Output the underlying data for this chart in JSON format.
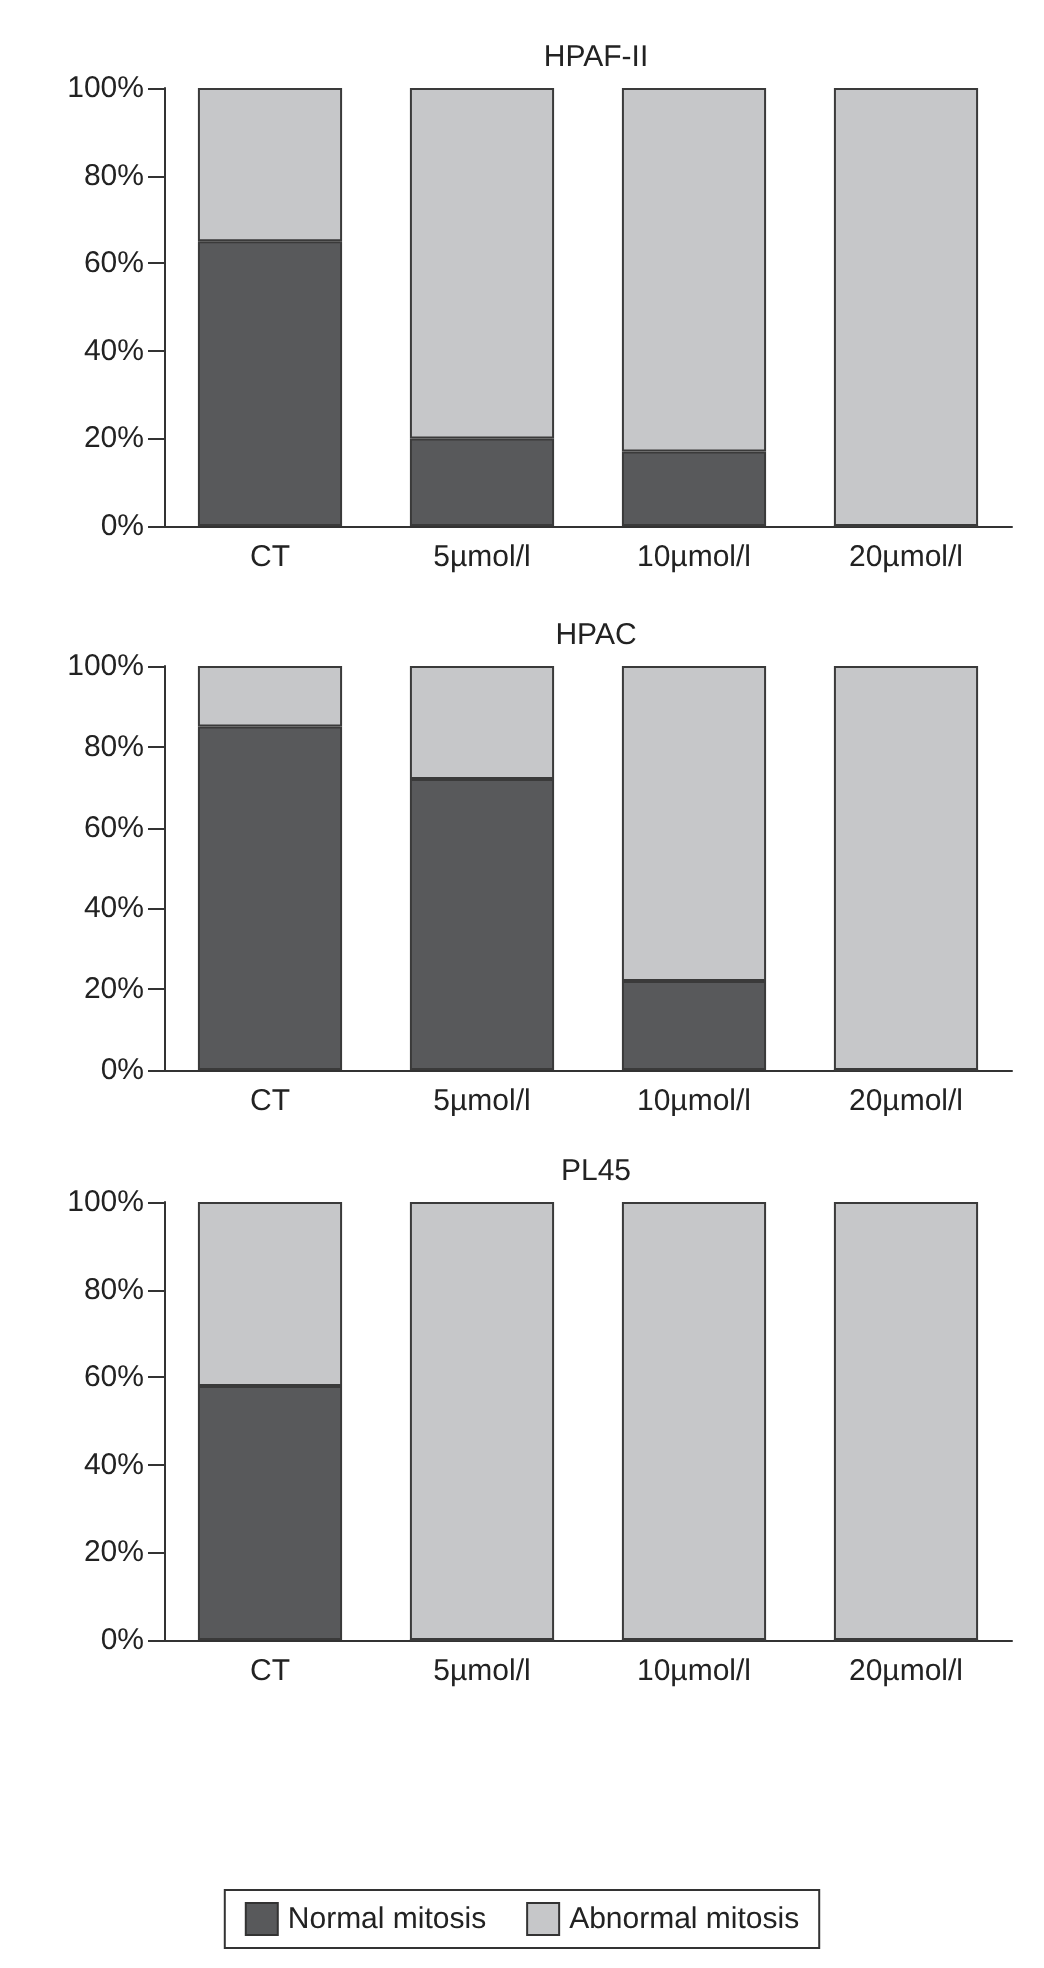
{
  "chart_data": [
    {
      "type": "bar",
      "title": "HPAF-II",
      "stacked": true,
      "categories": [
        "CT",
        "5µmol/l",
        "10µmol/l",
        "20µmol/l"
      ],
      "series": [
        {
          "color": "#58595b",
          "values": [
            65,
            20,
            17,
            0
          ]
        },
        {
          "color": "#c6c7c9",
          "values": [
            35,
            80,
            83,
            100
          ]
        }
      ],
      "ylim": [
        0,
        100
      ],
      "yticks": [
        {
          "value": 0,
          "label": "0%"
        },
        {
          "value": 20,
          "label": "20%"
        },
        {
          "value": 40,
          "label": "40%"
        },
        {
          "value": 60,
          "label": "60%"
        },
        {
          "value": 80,
          "label": "80%"
        },
        {
          "value": 100,
          "label": "100%"
        }
      ],
      "grid": false,
      "legend": false
    },
    {
      "type": "bar",
      "title": "HPAC",
      "stacked": true,
      "categories": [
        "CT",
        "5µmol/l",
        "10µmol/l",
        "20µmol/l"
      ],
      "series": [
        {
          "color": "#58595b",
          "values": [
            85,
            72,
            22,
            0
          ]
        },
        {
          "color": "#c6c7c9",
          "values": [
            15,
            28,
            78,
            100
          ]
        }
      ],
      "ylim": [
        0,
        100
      ],
      "yticks": [
        {
          "value": 0,
          "label": "0%"
        },
        {
          "value": 20,
          "label": "20%"
        },
        {
          "value": 40,
          "label": "40%"
        },
        {
          "value": 60,
          "label": "60%"
        },
        {
          "value": 80,
          "label": "80%"
        },
        {
          "value": 100,
          "label": "100%"
        }
      ],
      "grid": false,
      "legend": false
    },
    {
      "type": "bar",
      "title": "PL45",
      "stacked": true,
      "categories": [
        "CT",
        "5µmol/l",
        "10µmol/l",
        "20µmol/l"
      ],
      "series": [
        {
          "name": "Normal mitosis",
          "color": "#58595b",
          "values": [
            58,
            0,
            0,
            0
          ]
        },
        {
          "name": "Abnormal mitosis",
          "color": "#c6c7c9",
          "values": [
            42,
            100,
            100,
            100
          ]
        }
      ],
      "ylim": [
        0,
        100
      ],
      "yticks": [
        {
          "value": 0,
          "label": "0%"
        },
        {
          "value": 20,
          "label": "20%"
        },
        {
          "value": 40,
          "label": "40%"
        },
        {
          "value": 60,
          "label": "60%"
        },
        {
          "value": 80,
          "label": "80%"
        },
        {
          "value": 100,
          "label": "100%"
        }
      ],
      "grid": false,
      "legend": "bottom"
    }
  ]
}
